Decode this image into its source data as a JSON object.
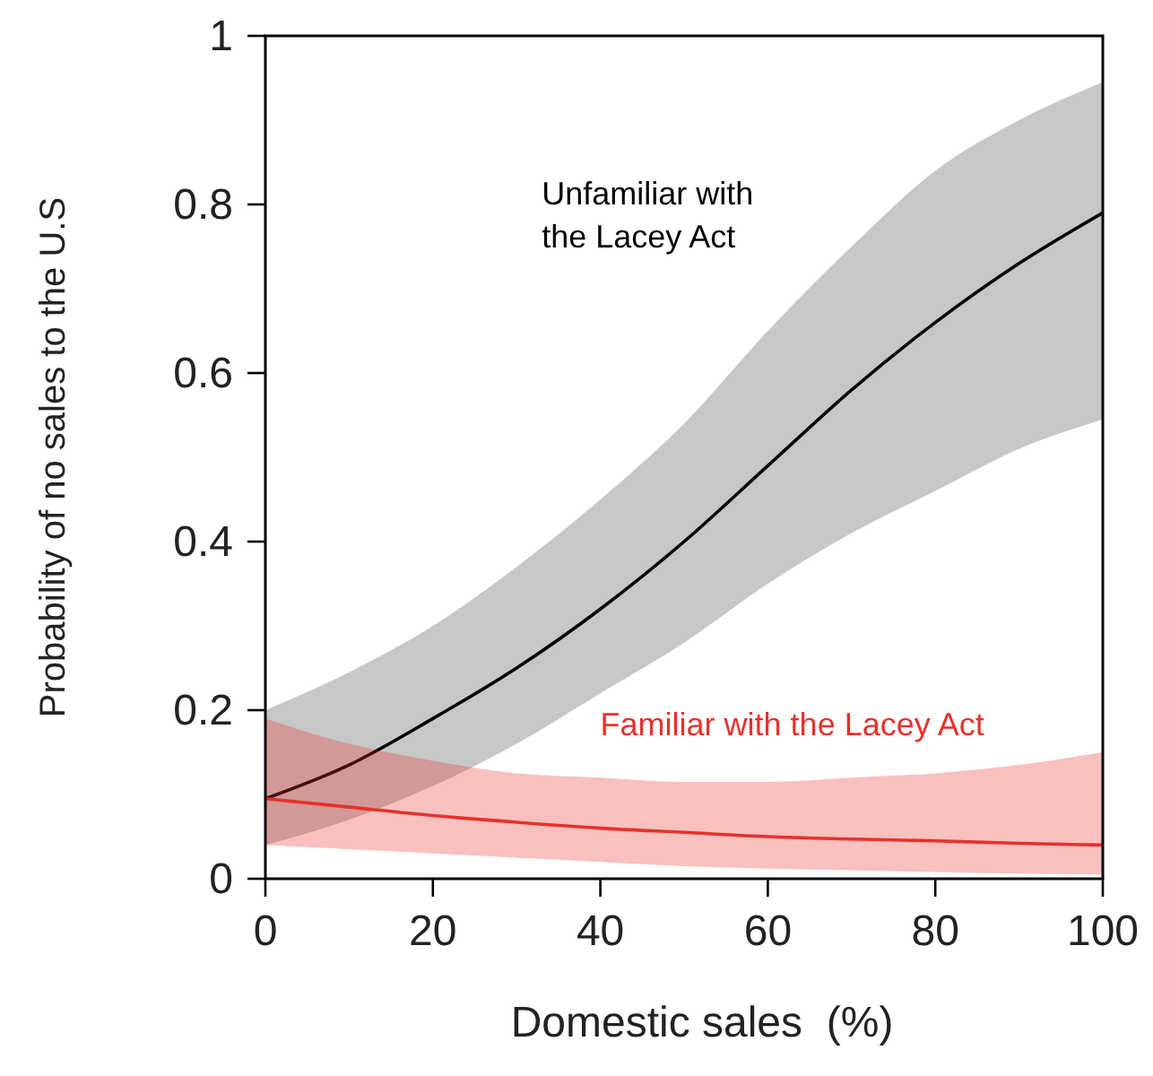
{
  "chart_data": {
    "type": "line",
    "xlabel": "Domestic sales  (%)",
    "ylabel": "Probability of no sales to the U.S",
    "x": [
      0,
      10,
      20,
      30,
      40,
      50,
      60,
      70,
      80,
      90,
      100
    ],
    "series": [
      {
        "name": "Unfamiliar with the Lacey Act",
        "color": "#000000",
        "values": [
          0.095,
          0.135,
          0.19,
          0.25,
          0.32,
          0.4,
          0.49,
          0.58,
          0.66,
          0.73,
          0.79
        ],
        "lower": [
          0.04,
          0.07,
          0.11,
          0.16,
          0.22,
          0.28,
          0.35,
          0.41,
          0.46,
          0.51,
          0.545
        ],
        "upper": [
          0.2,
          0.245,
          0.3,
          0.37,
          0.45,
          0.54,
          0.65,
          0.75,
          0.84,
          0.9,
          0.945
        ]
      },
      {
        "name": "Familiar with the Lacey Act",
        "color": "#e8302a",
        "values": [
          0.095,
          0.085,
          0.075,
          0.067,
          0.06,
          0.055,
          0.05,
          0.047,
          0.045,
          0.042,
          0.04
        ],
        "lower": [
          0.04,
          0.035,
          0.03,
          0.025,
          0.02,
          0.015,
          0.012,
          0.01,
          0.008,
          0.006,
          0.005
        ],
        "upper": [
          0.19,
          0.16,
          0.14,
          0.125,
          0.12,
          0.115,
          0.115,
          0.12,
          0.125,
          0.135,
          0.15
        ]
      }
    ],
    "xlim": [
      0,
      100
    ],
    "ylim": [
      0,
      1
    ],
    "xticks": [
      0,
      20,
      40,
      60,
      80,
      100
    ],
    "yticks": [
      0,
      0.2,
      0.4,
      0.6,
      0.8,
      1
    ],
    "grid": false,
    "line_style": "solid",
    "marker": "none"
  }
}
